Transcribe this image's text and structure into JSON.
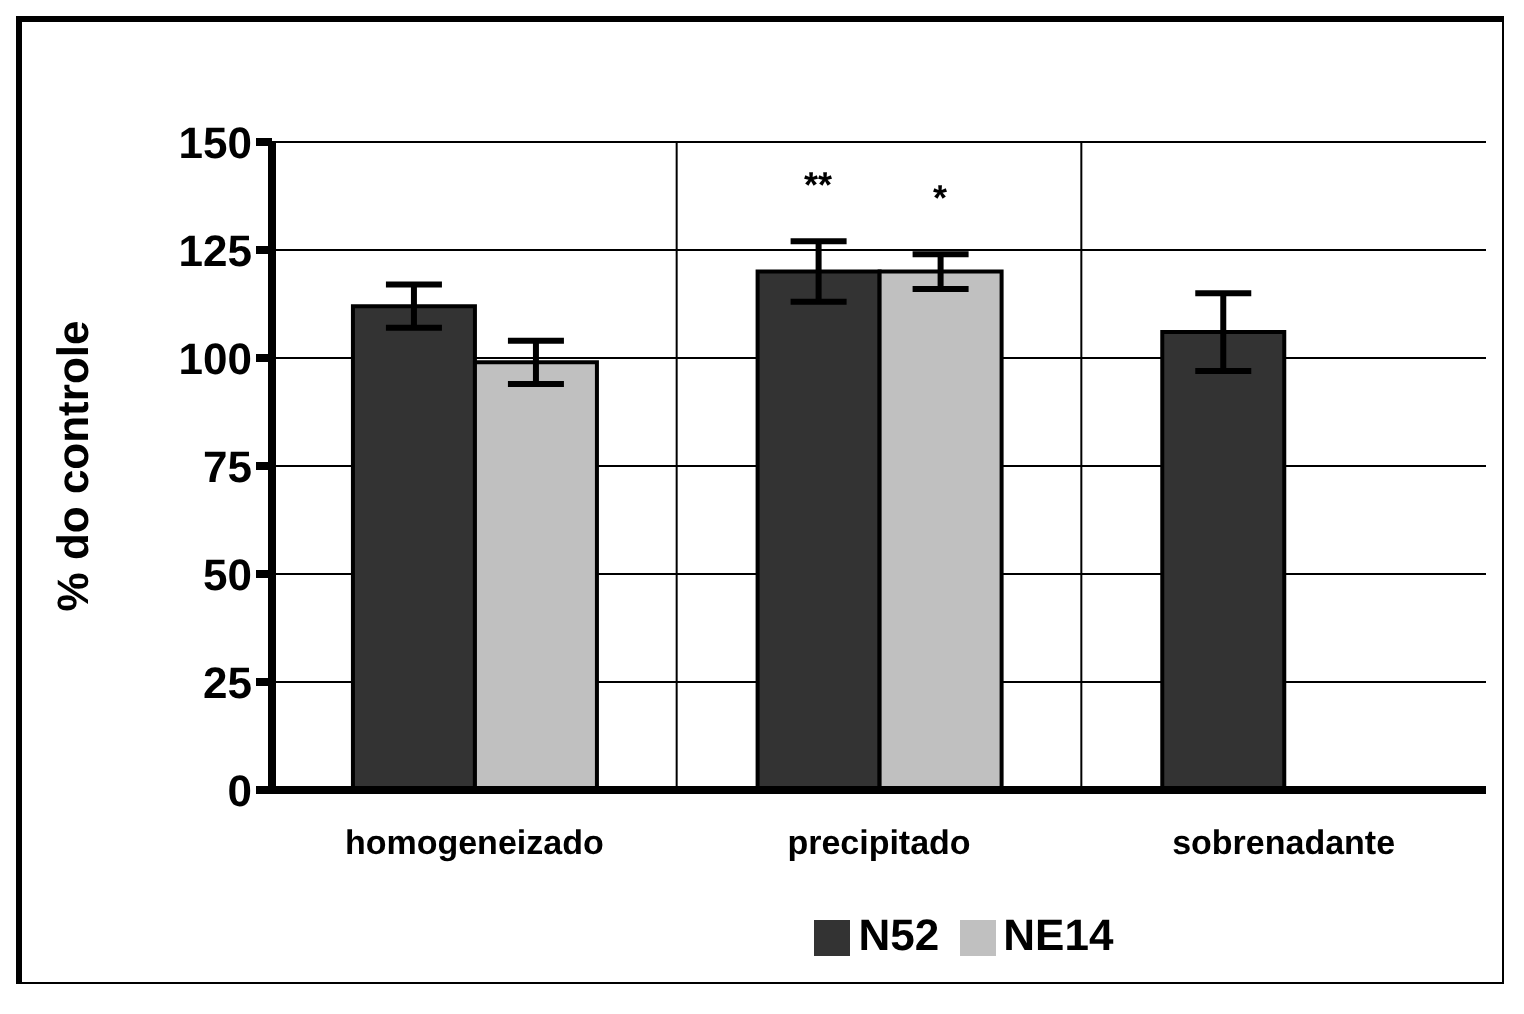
{
  "chart_data": {
    "type": "bar",
    "categories": [
      "homogeneizado",
      "precipitado",
      "sobrenadante"
    ],
    "ylabel": "% do controle",
    "ylim": [
      0,
      150
    ],
    "yticks": [
      0,
      25,
      50,
      75,
      100,
      125,
      150
    ],
    "grid": true,
    "legend": "bottom",
    "series": [
      {
        "name": "N52",
        "color": "#333333",
        "values": [
          112,
          120,
          106
        ],
        "errors": [
          5,
          7,
          9
        ]
      },
      {
        "name": "NE14",
        "color": "#c0c0c0",
        "values": [
          99,
          120,
          null
        ],
        "errors": [
          5,
          4,
          null
        ]
      }
    ],
    "annotations": [
      "**",
      "*"
    ]
  }
}
